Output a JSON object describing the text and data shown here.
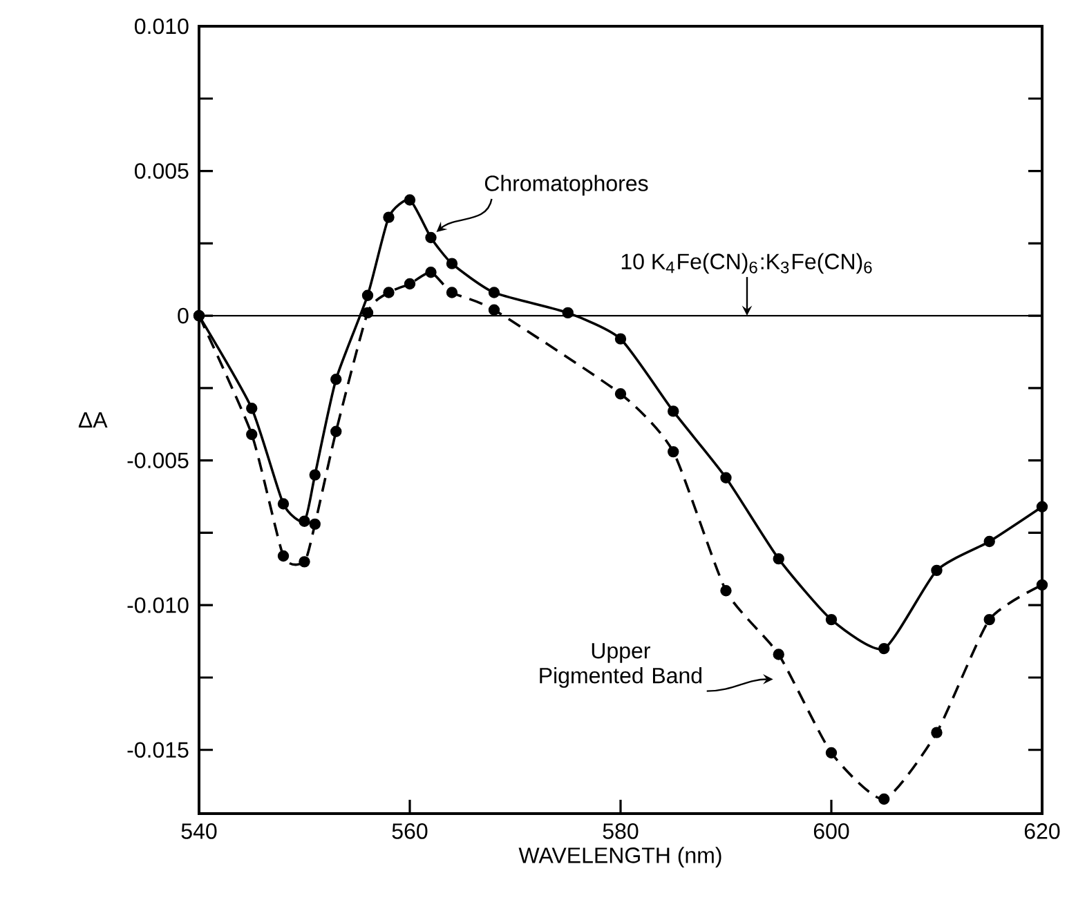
{
  "chart_data": {
    "type": "line",
    "xlabel": "WAVELENGTH (nm)",
    "ylabel": "ΔA",
    "x": [
      540,
      545,
      548,
      550,
      551,
      553,
      556,
      558,
      560,
      562,
      564,
      568,
      575,
      580,
      585,
      590,
      595,
      600,
      605,
      610,
      615,
      620
    ],
    "series": [
      {
        "name": "Chromatophores",
        "color": "#000000",
        "line_style": "solid",
        "marker": "circle",
        "values": [
          0,
          -0.0032,
          -0.0065,
          -0.0071,
          -0.0055,
          -0.0022,
          0.0007,
          0.0034,
          0.004,
          0.0027,
          0.0018,
          0.0008,
          0.0001,
          -0.0008,
          -0.0033,
          -0.0056,
          -0.0084,
          -0.0105,
          -0.0115,
          -0.0088,
          -0.0078,
          -0.0066
        ]
      },
      {
        "name": "Upper Pigmented Band",
        "color": "#000000",
        "line_style": "dashed",
        "marker": "circle",
        "values": [
          0,
          -0.0041,
          -0.0083,
          -0.0085,
          -0.0072,
          -0.004,
          0.0001,
          0.0008,
          0.0011,
          0.0015,
          0.0008,
          0.0002,
          null,
          -0.0027,
          -0.0047,
          -0.0095,
          -0.0117,
          -0.0151,
          -0.0167,
          -0.0144,
          -0.0105,
          -0.0093
        ]
      }
    ],
    "ref_lines": [
      {
        "axis": "y",
        "value": 0,
        "label": "10 K$_{4}$Fe(CN)$_{6}$:K$_{3}$Fe(CN)$_{6}$",
        "color": "#000000"
      }
    ],
    "xlim": [
      540,
      620
    ],
    "ylim": [
      -0.0172,
      0.01
    ],
    "xticks": [
      540,
      560,
      580,
      600,
      620
    ],
    "yticks": [
      {
        "value": -0.015,
        "label": "-0.015"
      },
      {
        "value": -0.0125,
        "label": null
      },
      {
        "value": -0.01,
        "label": "-0.010"
      },
      {
        "value": -0.0075,
        "label": null
      },
      {
        "value": -0.005,
        "label": "-0.005"
      },
      {
        "value": -0.0025,
        "label": null
      },
      {
        "value": 0,
        "label": "0"
      },
      {
        "value": 0.0025,
        "label": null
      },
      {
        "value": 0.005,
        "label": "0.005"
      },
      {
        "value": 0.0075,
        "label": null
      },
      {
        "value": 0.01,
        "label": "0.010"
      }
    ],
    "grid": false,
    "legend": false
  }
}
